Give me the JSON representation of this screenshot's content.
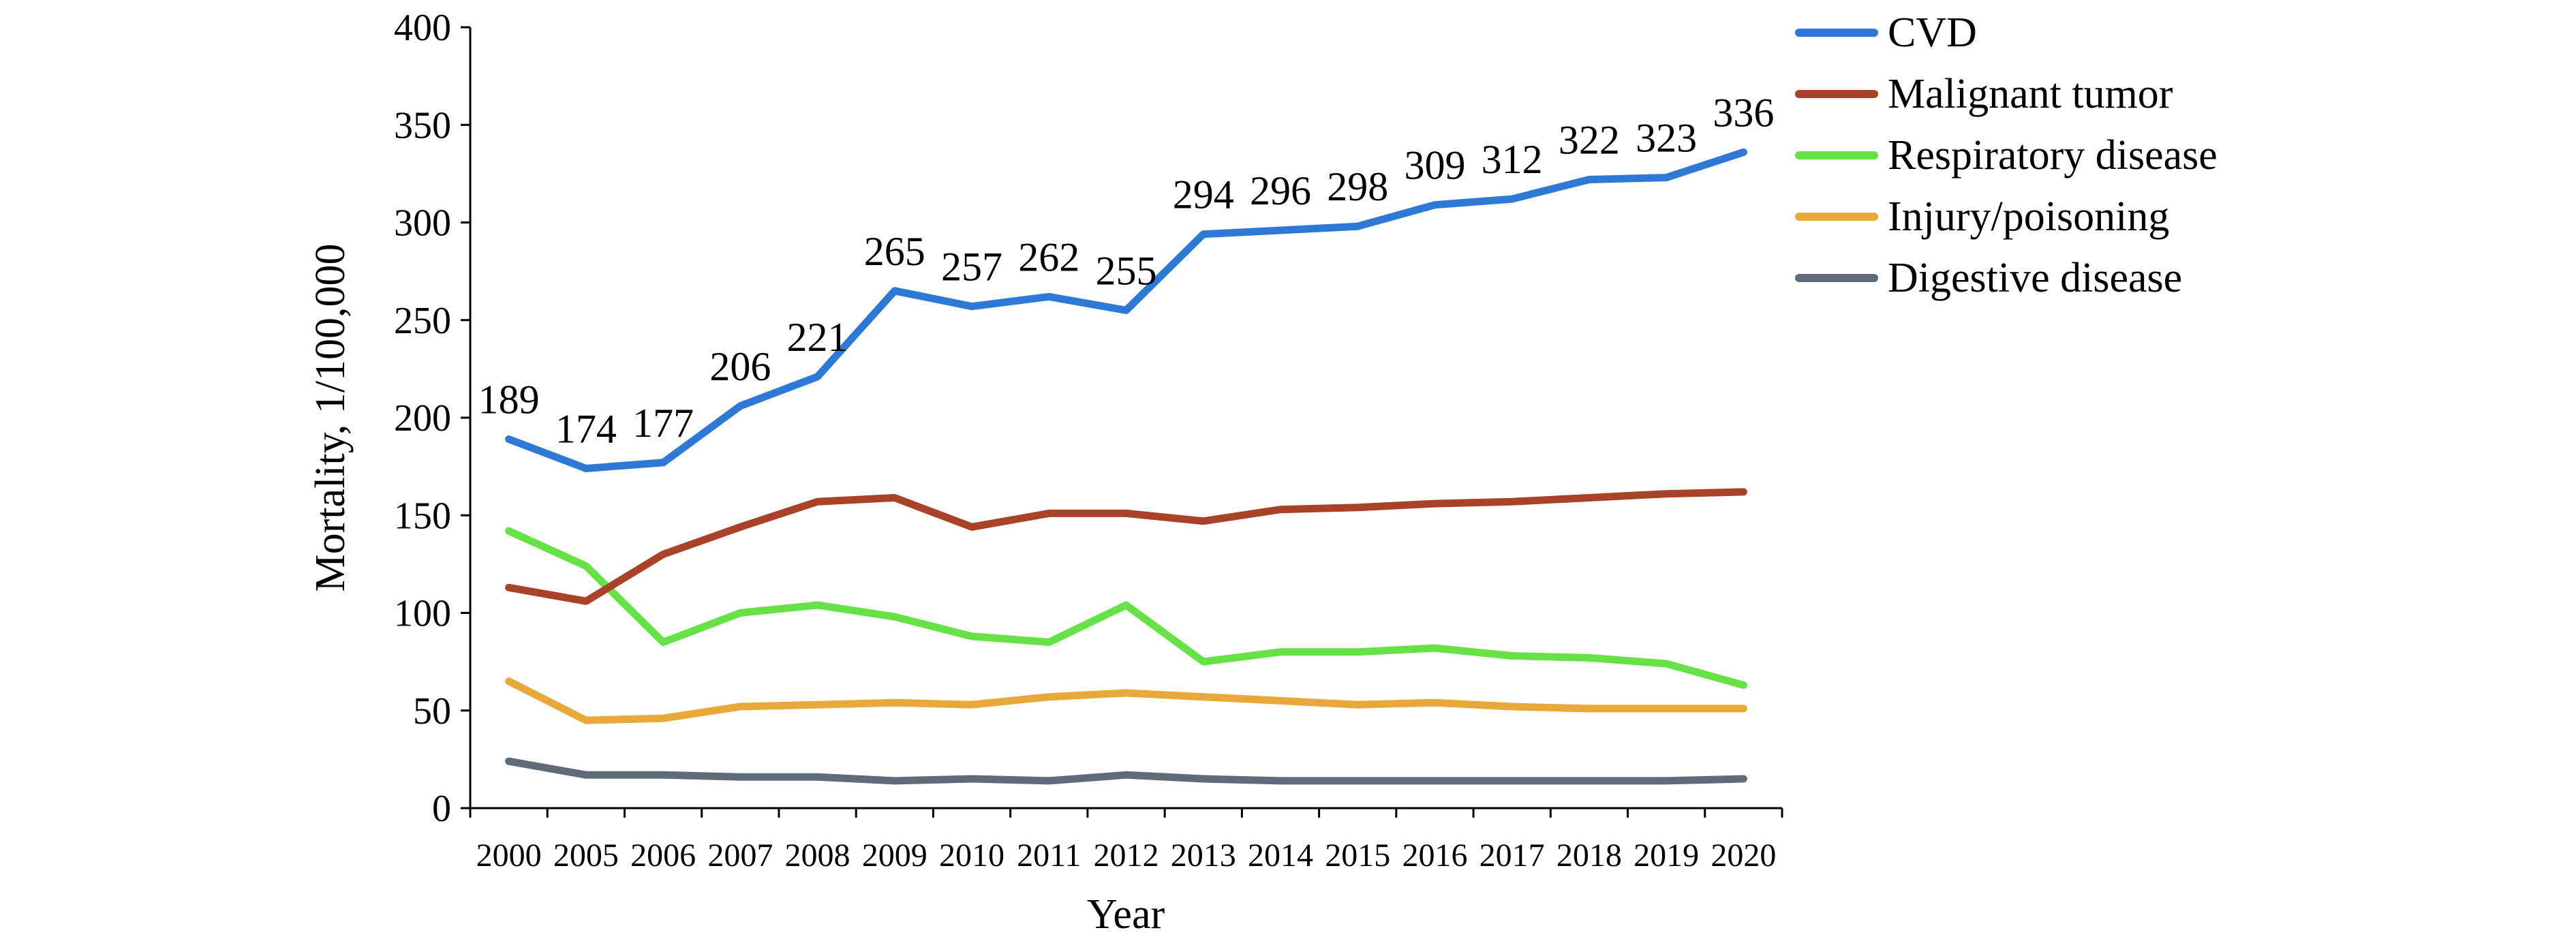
{
  "chart_data": {
    "type": "line",
    "xlabel": "Year",
    "ylabel": "Mortality, 1/100,000",
    "ylim": [
      0,
      400
    ],
    "yticks": [
      0,
      50,
      100,
      150,
      200,
      250,
      300,
      350,
      400
    ],
    "categories": [
      "2000",
      "2005",
      "2006",
      "2007",
      "2008",
      "2009",
      "2010",
      "2011",
      "2012",
      "2013",
      "2014",
      "2015",
      "2016",
      "2017",
      "2018",
      "2019",
      "2020"
    ],
    "grid": false,
    "legend_position": "top-right",
    "series": [
      {
        "name": "CVD",
        "color": "#2e78d6",
        "values": [
          189,
          174,
          177,
          206,
          221,
          265,
          257,
          262,
          255,
          294,
          296,
          298,
          309,
          312,
          322,
          323,
          336
        ],
        "data_labels": [
          "189",
          "174",
          "177",
          "206",
          "221",
          "265",
          "257",
          "262",
          "255",
          "294",
          "296",
          "298",
          "309",
          "312",
          "322",
          "323",
          "336"
        ]
      },
      {
        "name": "Malignant tumor",
        "color": "#a8432a",
        "values": [
          113,
          106,
          130,
          144,
          157,
          159,
          144,
          151,
          151,
          147,
          153,
          154,
          156,
          157,
          159,
          161,
          162
        ]
      },
      {
        "name": "Respiratory disease",
        "color": "#66e246",
        "values": [
          142,
          124,
          85,
          100,
          104,
          98,
          88,
          85,
          104,
          75,
          80,
          80,
          82,
          78,
          77,
          74,
          63
        ]
      },
      {
        "name": "Injury/poisoning",
        "color": "#e8a83a",
        "values": [
          65,
          45,
          46,
          52,
          53,
          54,
          53,
          57,
          59,
          57,
          55,
          53,
          54,
          52,
          51,
          51,
          51
        ]
      },
      {
        "name": "Digestive disease",
        "color": "#5f6b79",
        "values": [
          24,
          17,
          17,
          16,
          16,
          14,
          15,
          14,
          17,
          15,
          14,
          14,
          14,
          14,
          14,
          14,
          15
        ]
      }
    ]
  }
}
